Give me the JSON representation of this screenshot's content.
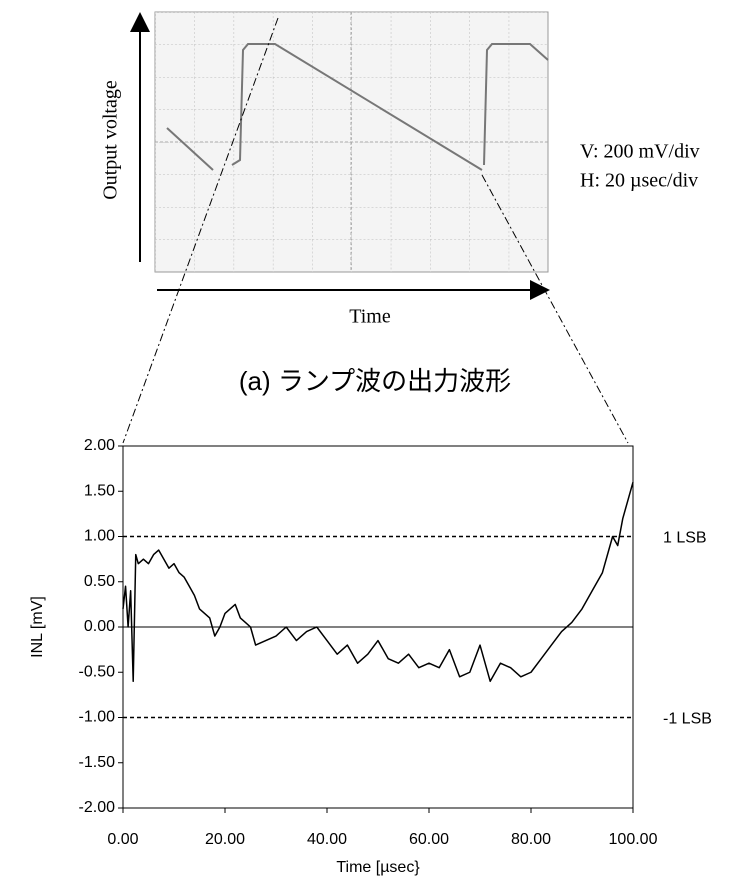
{
  "figure_a": {
    "y_label": "Output voltage",
    "x_label": "Time",
    "scale_notes": [
      "V: 200 mV/div",
      "H: 20 µsec/div"
    ],
    "caption": "(a) ランプ波の出力波形"
  },
  "chart_data": {
    "type": "line",
    "x_label": "Time [µsec}",
    "y_label": "INL [mV]",
    "color": "#000000",
    "x": [
      0,
      0.5,
      1,
      1.5,
      2,
      2.5,
      3,
      4,
      5,
      6,
      7,
      8,
      9,
      10,
      11,
      12,
      13,
      14,
      15,
      16,
      17,
      18,
      19,
      20,
      21,
      22,
      23,
      24,
      25,
      26,
      28,
      30,
      32,
      34,
      36,
      38,
      40,
      42,
      44,
      46,
      48,
      50,
      52,
      54,
      56,
      58,
      60,
      62,
      64,
      66,
      68,
      70,
      72,
      74,
      76,
      78,
      80,
      82,
      84,
      86,
      88,
      90,
      92,
      94,
      96,
      97,
      98,
      99,
      100
    ],
    "values": [
      0.2,
      0.45,
      0.0,
      0.4,
      -0.6,
      0.8,
      0.7,
      0.75,
      0.7,
      0.8,
      0.85,
      0.75,
      0.65,
      0.7,
      0.6,
      0.55,
      0.45,
      0.35,
      0.2,
      0.15,
      0.1,
      -0.1,
      0.0,
      0.15,
      0.2,
      0.25,
      0.1,
      0.05,
      0.0,
      -0.2,
      -0.15,
      -0.1,
      0.0,
      -0.15,
      -0.05,
      0.0,
      -0.15,
      -0.3,
      -0.2,
      -0.4,
      -0.3,
      -0.15,
      -0.35,
      -0.4,
      -0.3,
      -0.45,
      -0.4,
      -0.45,
      -0.25,
      -0.55,
      -0.5,
      -0.2,
      -0.6,
      -0.4,
      -0.45,
      -0.55,
      -0.5,
      -0.35,
      -0.2,
      -0.05,
      0.05,
      0.2,
      0.4,
      0.6,
      1.0,
      0.9,
      1.2,
      1.4,
      1.6
    ],
    "xlim": [
      0,
      100
    ],
    "ylim": [
      -2,
      2
    ],
    "xticks": [
      {
        "value": 0,
        "label": "0.00"
      },
      {
        "value": 20,
        "label": "20.00"
      },
      {
        "value": 40,
        "label": "40.00"
      },
      {
        "value": 60,
        "label": "60.00"
      },
      {
        "value": 80,
        "label": "80.00"
      },
      {
        "value": 100,
        "label": "100.00"
      }
    ],
    "yticks": [
      {
        "value": -2,
        "label": "-2.00"
      },
      {
        "value": -1.5,
        "label": "-1.50"
      },
      {
        "value": -1,
        "label": "-1.00"
      },
      {
        "value": -0.5,
        "label": "-0.50"
      },
      {
        "value": 0,
        "label": "0.00"
      },
      {
        "value": 0.5,
        "label": "0.50"
      },
      {
        "value": 1,
        "label": "1.00"
      },
      {
        "value": 1.5,
        "label": "1.50"
      },
      {
        "value": 2,
        "label": "2.00"
      }
    ],
    "reference_lines": [
      {
        "value": 1,
        "label": "1 LSB"
      },
      {
        "value": -1,
        "label": "-1 LSB"
      }
    ],
    "grid": false
  }
}
